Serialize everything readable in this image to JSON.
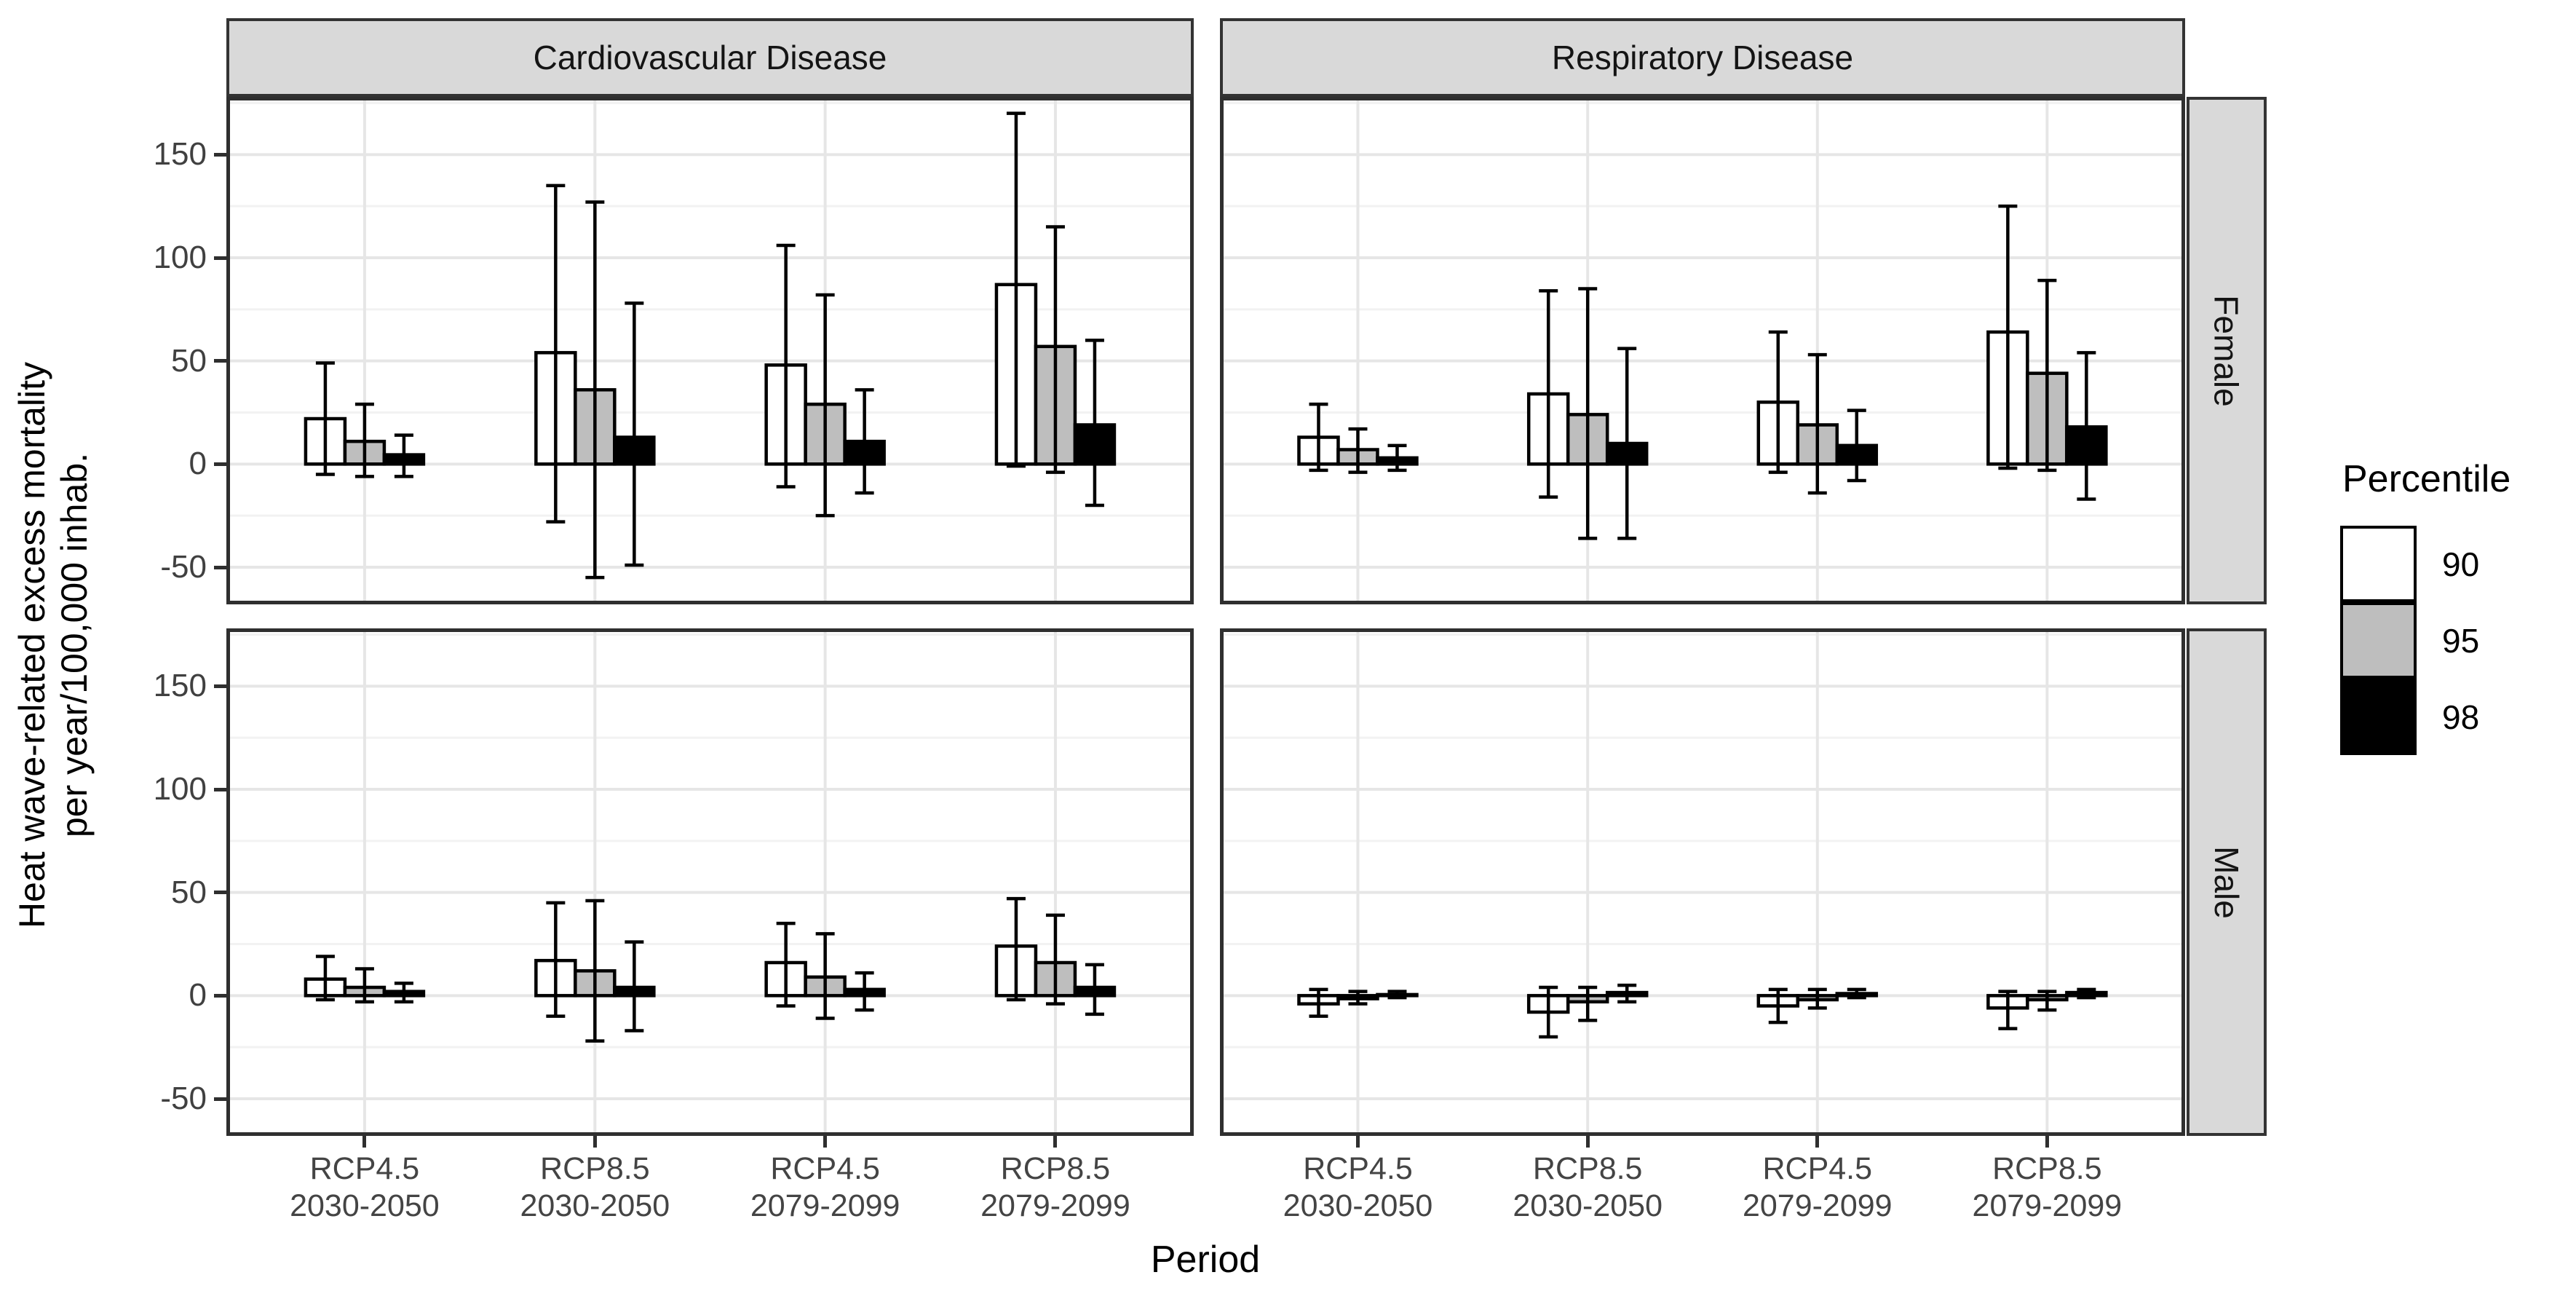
{
  "y_axis": {
    "title_line1": "Heat wave-related excess mortality",
    "title_line2": "per year/100,000 inhab.",
    "tick_labels": [
      "150",
      "100",
      "50",
      "0",
      "-50"
    ]
  },
  "x_axis": {
    "title": "Period",
    "categories": [
      {
        "line1": "RCP4.5",
        "line2": "2030-2050"
      },
      {
        "line1": "RCP8.5",
        "line2": "2030-2050"
      },
      {
        "line1": "RCP4.5",
        "line2": "2079-2099"
      },
      {
        "line1": "RCP8.5",
        "line2": "2079-2099"
      }
    ]
  },
  "facets": {
    "columns": [
      "Cardiovascular Disease",
      "Respiratory Disease"
    ],
    "rows": [
      "Female",
      "Male"
    ]
  },
  "legend": {
    "title": "Percentile",
    "entries": [
      {
        "label": "90",
        "fill": "#ffffff"
      },
      {
        "label": "95",
        "fill": "#bebebe"
      },
      {
        "label": "98",
        "fill": "#000000"
      }
    ]
  },
  "colors": {
    "strip_fill": "#d9d9d9",
    "panel_border": "#2f2f2f",
    "grid_major": "#e6e6e6",
    "grid_minor": "#f2f2f2",
    "bar_stroke": "#000000",
    "errorbar": "#000000"
  },
  "chart_data": {
    "type": "bar",
    "title": "",
    "xlabel": "Period",
    "ylabel": "Heat wave-related excess mortality per year/100,000 inhab.",
    "ylim": [
      -68,
      178
    ],
    "y_major_ticks": [
      150,
      100,
      50,
      0,
      -50
    ],
    "y_minor_ticks": [
      175,
      125,
      75,
      25,
      -25
    ],
    "grid": true,
    "legend_position": "right",
    "series_order": [
      "90",
      "95",
      "98"
    ],
    "panels": [
      {
        "facet_col": "Cardiovascular Disease",
        "facet_row": "Female",
        "groups": [
          {
            "category": "RCP4.5 2030-2050",
            "bars": [
              {
                "percentile": "90",
                "value": 22,
                "ci_low": -5,
                "ci_high": 49
              },
              {
                "percentile": "95",
                "value": 11,
                "ci_low": -6,
                "ci_high": 29
              },
              {
                "percentile": "98",
                "value": 4.5,
                "ci_low": -6,
                "ci_high": 14
              }
            ]
          },
          {
            "category": "RCP8.5 2030-2050",
            "bars": [
              {
                "percentile": "90",
                "value": 54,
                "ci_low": -28,
                "ci_high": 135
              },
              {
                "percentile": "95",
                "value": 36,
                "ci_low": -55,
                "ci_high": 127
              },
              {
                "percentile": "98",
                "value": 13,
                "ci_low": -49,
                "ci_high": 78
              }
            ]
          },
          {
            "category": "RCP4.5 2079-2099",
            "bars": [
              {
                "percentile": "90",
                "value": 48,
                "ci_low": -11,
                "ci_high": 106
              },
              {
                "percentile": "95",
                "value": 29,
                "ci_low": -25,
                "ci_high": 82
              },
              {
                "percentile": "98",
                "value": 11,
                "ci_low": -14,
                "ci_high": 36
              }
            ]
          },
          {
            "category": "RCP8.5 2079-2099",
            "bars": [
              {
                "percentile": "90",
                "value": 87,
                "ci_low": -1,
                "ci_high": 170
              },
              {
                "percentile": "95",
                "value": 57,
                "ci_low": -4,
                "ci_high": 115
              },
              {
                "percentile": "98",
                "value": 19,
                "ci_low": -20,
                "ci_high": 60
              }
            ]
          }
        ]
      },
      {
        "facet_col": "Respiratory Disease",
        "facet_row": "Female",
        "groups": [
          {
            "category": "RCP4.5 2030-2050",
            "bars": [
              {
                "percentile": "90",
                "value": 13,
                "ci_low": -3,
                "ci_high": 29
              },
              {
                "percentile": "95",
                "value": 7,
                "ci_low": -4,
                "ci_high": 17
              },
              {
                "percentile": "98",
                "value": 3,
                "ci_low": -3,
                "ci_high": 9
              }
            ]
          },
          {
            "category": "RCP8.5 2030-2050",
            "bars": [
              {
                "percentile": "90",
                "value": 34,
                "ci_low": -16,
                "ci_high": 84
              },
              {
                "percentile": "95",
                "value": 24,
                "ci_low": -36,
                "ci_high": 85
              },
              {
                "percentile": "98",
                "value": 10,
                "ci_low": -36,
                "ci_high": 56
              }
            ]
          },
          {
            "category": "RCP4.5 2079-2099",
            "bars": [
              {
                "percentile": "90",
                "value": 30,
                "ci_low": -4,
                "ci_high": 64
              },
              {
                "percentile": "95",
                "value": 19,
                "ci_low": -14,
                "ci_high": 53
              },
              {
                "percentile": "98",
                "value": 9,
                "ci_low": -8,
                "ci_high": 26
              }
            ]
          },
          {
            "category": "RCP8.5 2079-2099",
            "bars": [
              {
                "percentile": "90",
                "value": 64,
                "ci_low": -2,
                "ci_high": 125
              },
              {
                "percentile": "95",
                "value": 44,
                "ci_low": -3,
                "ci_high": 89
              },
              {
                "percentile": "98",
                "value": 18,
                "ci_low": -17,
                "ci_high": 54
              }
            ]
          }
        ]
      },
      {
        "facet_col": "Cardiovascular Disease",
        "facet_row": "Male",
        "groups": [
          {
            "category": "RCP4.5 2030-2050",
            "bars": [
              {
                "percentile": "90",
                "value": 8,
                "ci_low": -2,
                "ci_high": 19
              },
              {
                "percentile": "95",
                "value": 4,
                "ci_low": -3,
                "ci_high": 13
              },
              {
                "percentile": "98",
                "value": 2,
                "ci_low": -3,
                "ci_high": 6
              }
            ]
          },
          {
            "category": "RCP8.5 2030-2050",
            "bars": [
              {
                "percentile": "90",
                "value": 17,
                "ci_low": -10,
                "ci_high": 45
              },
              {
                "percentile": "95",
                "value": 12,
                "ci_low": -22,
                "ci_high": 46
              },
              {
                "percentile": "98",
                "value": 4,
                "ci_low": -17,
                "ci_high": 26
              }
            ]
          },
          {
            "category": "RCP4.5 2079-2099",
            "bars": [
              {
                "percentile": "90",
                "value": 16,
                "ci_low": -5,
                "ci_high": 35
              },
              {
                "percentile": "95",
                "value": 9,
                "ci_low": -11,
                "ci_high": 30
              },
              {
                "percentile": "98",
                "value": 3,
                "ci_low": -7,
                "ci_high": 11
              }
            ]
          },
          {
            "category": "RCP8.5 2079-2099",
            "bars": [
              {
                "percentile": "90",
                "value": 24,
                "ci_low": -2,
                "ci_high": 47
              },
              {
                "percentile": "95",
                "value": 16,
                "ci_low": -4,
                "ci_high": 39
              },
              {
                "percentile": "98",
                "value": 4,
                "ci_low": -9,
                "ci_high": 15
              }
            ]
          }
        ]
      },
      {
        "facet_col": "Respiratory Disease",
        "facet_row": "Male",
        "groups": [
          {
            "category": "RCP4.5 2030-2050",
            "bars": [
              {
                "percentile": "90",
                "value": -4,
                "ci_low": -10,
                "ci_high": 3
              },
              {
                "percentile": "95",
                "value": -1.5,
                "ci_low": -4,
                "ci_high": 2
              },
              {
                "percentile": "98",
                "value": 0.5,
                "ci_low": -1,
                "ci_high": 2
              }
            ]
          },
          {
            "category": "RCP8.5 2030-2050",
            "bars": [
              {
                "percentile": "90",
                "value": -8,
                "ci_low": -20,
                "ci_high": 4
              },
              {
                "percentile": "95",
                "value": -3,
                "ci_low": -12,
                "ci_high": 4
              },
              {
                "percentile": "98",
                "value": 1.5,
                "ci_low": -3,
                "ci_high": 5
              }
            ]
          },
          {
            "category": "RCP4.5 2079-2099",
            "bars": [
              {
                "percentile": "90",
                "value": -5,
                "ci_low": -13,
                "ci_high": 3
              },
              {
                "percentile": "95",
                "value": -2,
                "ci_low": -6,
                "ci_high": 3
              },
              {
                "percentile": "98",
                "value": 1,
                "ci_low": -1,
                "ci_high": 3
              }
            ]
          },
          {
            "category": "RCP8.5 2079-2099",
            "bars": [
              {
                "percentile": "90",
                "value": -6,
                "ci_low": -16,
                "ci_high": 2
              },
              {
                "percentile": "95",
                "value": -2,
                "ci_low": -7,
                "ci_high": 2
              },
              {
                "percentile": "98",
                "value": 1.5,
                "ci_low": -1,
                "ci_high": 3
              }
            ]
          }
        ]
      }
    ]
  }
}
